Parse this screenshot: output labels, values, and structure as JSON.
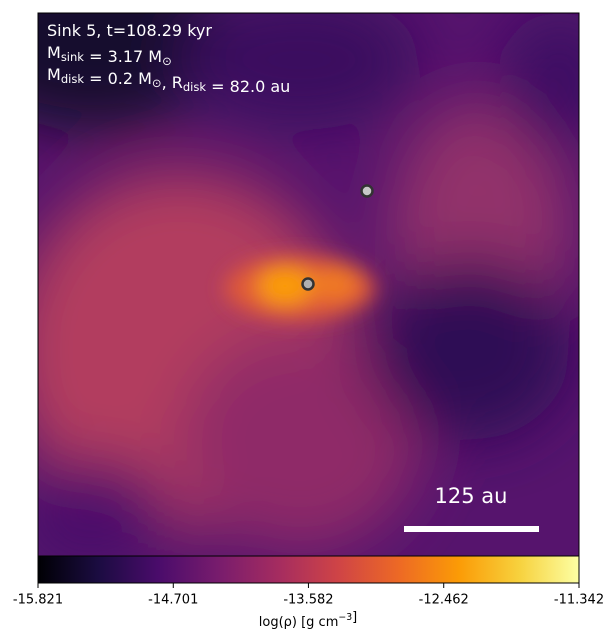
{
  "chart_data": {
    "type": "image",
    "annotation_lines": [
      [
        "Sink 5, t=108.29 kyr"
      ],
      [
        "M",
        {
          "sub": "sink"
        },
        " = 3.17 M",
        {
          "sub": "⊙"
        }
      ],
      [
        "M",
        {
          "sub": "disk"
        },
        " = 0.2 M",
        {
          "sub": "⊙"
        },
        ", R",
        {
          "sub": "disk"
        },
        " = 82.0 au"
      ]
    ],
    "scale_bar_label": "125 au",
    "colorbar": {
      "label": [
        "log(ρ) [g cm",
        {
          "sup": "−3"
        },
        "]"
      ],
      "lim": [
        -15.821,
        -11.342
      ],
      "ticks": [
        -15.821,
        -14.701,
        -13.582,
        -12.462,
        -11.342
      ],
      "colormap": [
        "#000004",
        "#1b0c41",
        "#4a0c6b",
        "#781c6d",
        "#a52c60",
        "#cf4446",
        "#ed6925",
        "#fb9b06",
        "#f7d13d",
        "#fcffa4"
      ]
    }
  }
}
